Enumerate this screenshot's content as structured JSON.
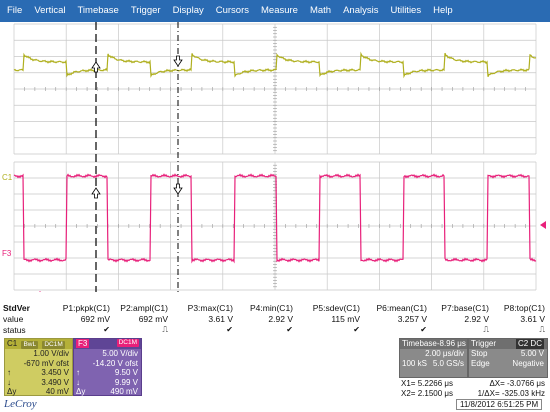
{
  "menu": [
    "File",
    "Vertical",
    "Timebase",
    "Trigger",
    "Display",
    "Cursors",
    "Measure",
    "Math",
    "Analysis",
    "Utilities",
    "Help"
  ],
  "colors": {
    "menu_bg": "#2a6bb3",
    "trace_c1": "#b0b020",
    "trace_f3": "#e8207a",
    "grid": "#c8c8c8",
    "cursor": "#000000"
  },
  "trace_labels": {
    "c1": "C1",
    "f3": "F3"
  },
  "measurements": {
    "header": "StdVer",
    "row_labels": [
      "value",
      "status"
    ],
    "params": [
      {
        "name": "P1:pkpk(C1)",
        "value": "692 mV",
        "status": "✔"
      },
      {
        "name": "P2:ampl(C1)",
        "value": "692 mV",
        "status": "⎍"
      },
      {
        "name": "P3:max(C1)",
        "value": "3.61 V",
        "status": "✔"
      },
      {
        "name": "P4:min(C1)",
        "value": "2.92 V",
        "status": "✔"
      },
      {
        "name": "P5:sdev(C1)",
        "value": "115 mV",
        "status": "✔"
      },
      {
        "name": "P6:mean(C1)",
        "value": "3.257 V",
        "status": "✔"
      },
      {
        "name": "P7:base(C1)",
        "value": "2.92 V",
        "status": "⎍"
      },
      {
        "name": "P8:top(C1)",
        "value": "3.61 V",
        "status": "⎍"
      }
    ]
  },
  "channel_c1": {
    "name": "C1",
    "tags": [
      "BwL",
      "DC1M"
    ],
    "vdiv": "1.00 V/div",
    "offset": "-670 mV ofst",
    "cursor1": "3.450 V",
    "cursor2": "3.490 V",
    "delta_label": "Δy",
    "delta": "40 mV"
  },
  "channel_f3": {
    "name": "F3",
    "tags": [
      "DC1M"
    ],
    "vdiv": "5.00 V/div",
    "offset": "-14.20 V ofst",
    "cursor1": "9.50 V",
    "cursor2": "9.99 V",
    "delta_label": "Δy",
    "delta": "490 mV"
  },
  "timebase": {
    "title": "Timebase",
    "delay": "-8.96 μs",
    "tdiv": "2.00 μs/div",
    "samples": "100 kS",
    "rate": "5.0 GS/s"
  },
  "trigger": {
    "title": "Trigger",
    "source": "C2 DC",
    "mode": "Stop",
    "level": "5.00 V",
    "type": "Edge",
    "slope": "Negative"
  },
  "cursors": {
    "x1_label": "X1=",
    "x1": "5.2266 μs",
    "dx_label": "ΔX=",
    "dx": "-3.0766 μs",
    "x2_label": "X2=",
    "x2": "2.1500 μs",
    "inv_label": "1/ΔX=",
    "inv": "-325.03 kHz"
  },
  "brand": "LeCroy",
  "datetime": "11/8/2012 6:51:25 PM"
}
